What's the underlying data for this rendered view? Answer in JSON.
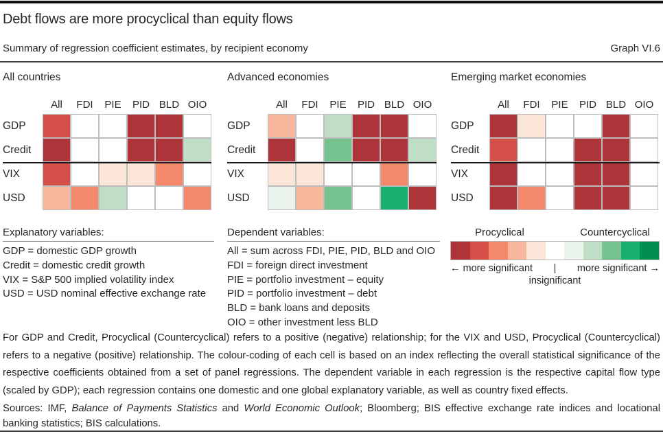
{
  "header": {
    "title": "Debt flows are more procyclical than equity flows",
    "subtitle": "Summary of regression coefficient estimates, by recipient economy",
    "graph_label": "Graph VI.6"
  },
  "chart_data": {
    "type": "heatmap",
    "title": "Debt flows are more procyclical than equity flows",
    "subtitle": "Summary of regression coefficient estimates, by recipient economy",
    "columns": [
      "All",
      "FDI",
      "PIE",
      "PID",
      "BLD",
      "OIO"
    ],
    "rows": [
      "GDP",
      "Credit",
      "VIX",
      "USD"
    ],
    "scale": {
      "description": "Significance index from -5 (most significant procyclical, dark red) through 0 (insignificant, white) to +5 (most significant countercyclical, dark green)",
      "levels": [
        -5,
        -4,
        -3,
        -2,
        -1,
        0,
        1,
        2,
        3,
        4,
        5
      ],
      "colors": [
        "#ad3439",
        "#d44f48",
        "#f4886b",
        "#f8b89e",
        "#fce5d9",
        "#ffffff",
        "#eaf3ec",
        "#c0ddc6",
        "#77c38f",
        "#17b06e",
        "#008f4f"
      ],
      "procyclical_label": "Procyclical",
      "countercyclical_label": "Countercyclical",
      "more_significant_left": "← more significant",
      "divider": "|",
      "more_significant_right": "more significant →",
      "insignificant_label": "insignificant"
    },
    "panels": [
      {
        "title": "All countries",
        "values": [
          [
            -4,
            0,
            0,
            -5,
            -5,
            0
          ],
          [
            -5,
            0,
            0,
            -5,
            -5,
            2
          ],
          [
            -4,
            0,
            -1,
            -1,
            -3,
            0
          ],
          [
            -2,
            -3,
            2,
            0,
            0,
            -3
          ]
        ]
      },
      {
        "title": "Advanced economies",
        "values": [
          [
            -2,
            0,
            2,
            -5,
            -5,
            0
          ],
          [
            -5,
            0,
            3,
            -5,
            -5,
            2
          ],
          [
            -1,
            -1,
            0,
            0,
            -3,
            0
          ],
          [
            1,
            -2,
            3,
            0,
            4,
            -5
          ]
        ]
      },
      {
        "title": "Emerging market economies",
        "values": [
          [
            -5,
            -1,
            0,
            0,
            -5,
            0
          ],
          [
            -4,
            0,
            0,
            -5,
            -5,
            0
          ],
          [
            -5,
            0,
            0,
            -5,
            -5,
            0
          ],
          [
            -5,
            -3,
            0,
            -5,
            -5,
            0
          ]
        ]
      }
    ]
  },
  "notes": {
    "explanatory": {
      "heading": "Explanatory variables:",
      "items": [
        "GDP = domestic GDP growth",
        "Credit = domestic credit growth",
        "VIX = S&P 500 implied volatility index",
        "USD = USD nominal effective exchange rate"
      ]
    },
    "dependent": {
      "heading": "Dependent variables:",
      "items": [
        "All = sum across FDI, PIE, PID, BLD and OIO",
        "FDI = foreign direct investment",
        "PIE = portfolio investment – equity",
        "PID = portfolio investment – debt",
        "BLD = bank loans and deposits",
        "OIO = other investment less BLD"
      ]
    }
  },
  "footnote": "For GDP and Credit, Procyclical (Countercyclical) refers to a positive (negative) relationship; for the VIX and USD, Procyclical (Countercyclical) refers to a negative (positive) relationship. The colour-coding of each cell is based on an index reflecting the overall statistical significance of the respective coefficients obtained from a set of panel regressions. The dependent variable in each regression is the respective capital flow type (scaled by GDP); each regression contains one domestic and one global explanatory variable, as well as country fixed effects.",
  "sources": {
    "prefix": "Sources: IMF, ",
    "italic1": "Balance of Payments Statistics",
    "mid": " and ",
    "italic2": "World Economic Outlook",
    "suffix": "; Bloomberg; BIS effective exchange rate indices and locational banking statistics; BIS calculations."
  }
}
